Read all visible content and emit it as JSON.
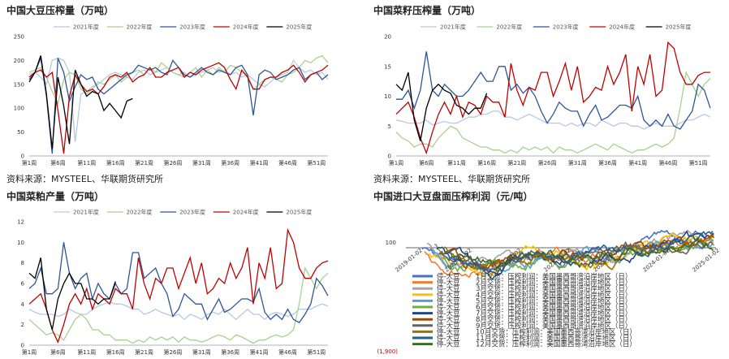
{
  "sources": [
    "资料来源：MYSTEEL、华联期货研究所",
    "资料来源：MYSTEEL、华联期货研究所"
  ],
  "chart_data": [
    {
      "type": "line",
      "title": "中国大豆压榨量（万吨）",
      "ylim": [
        0,
        250
      ],
      "yticks": [
        0,
        50,
        100,
        150,
        200,
        250
      ],
      "xticks": [
        "第1周",
        "第6周",
        "第11周",
        "第16周",
        "第21周",
        "第26周",
        "第31周",
        "第36周",
        "第41周",
        "第46周",
        "第51周"
      ],
      "x_first": 1,
      "x_last": 53,
      "legend_placement": "top",
      "series": [
        {
          "name": "2021年度",
          "color": "#b7c9e2",
          "x_start": 1,
          "values": [
            170,
            175,
            165,
            150,
            200,
            205,
            200,
            175,
            30,
            130,
            135,
            145,
            150,
            160,
            170,
            175,
            170,
            165,
            160,
            175,
            180,
            170,
            175,
            180,
            185,
            175,
            170,
            175,
            165,
            170,
            175,
            180,
            185,
            175,
            180,
            170,
            175,
            165,
            170,
            160,
            150,
            145,
            155,
            165,
            170,
            175,
            200,
            185,
            175,
            180,
            170,
            175,
            160
          ]
        },
        {
          "name": "2022年度",
          "color": "#a9d18e",
          "x_start": 1,
          "values": [
            175,
            180,
            185,
            165,
            135,
            110,
            160,
            175,
            170,
            140,
            130,
            140,
            155,
            150,
            160,
            170,
            155,
            165,
            175,
            180,
            170,
            185,
            175,
            195,
            185,
            175,
            170,
            165,
            175,
            185,
            165,
            180,
            170,
            185,
            175,
            190,
            185,
            175,
            170,
            140,
            150,
            160,
            165,
            160,
            155,
            170,
            175,
            185,
            200,
            195,
            205,
            210,
            195
          ]
        },
        {
          "name": "2023年度",
          "color": "#2f5597",
          "x_start": 1,
          "values": [
            160,
            175,
            205,
            125,
            5,
            205,
            175,
            115,
            145,
            170,
            160,
            165,
            140,
            130,
            140,
            150,
            160,
            170,
            175,
            190,
            185,
            180,
            185,
            175,
            170,
            200,
            185,
            170,
            165,
            175,
            185,
            175,
            170,
            180,
            175,
            170,
            185,
            190,
            170,
            85,
            170,
            180,
            175,
            160,
            165,
            170,
            180,
            185,
            160,
            170,
            175,
            160,
            170
          ]
        },
        {
          "name": "2024年度",
          "color": "#c00000",
          "x_start": 1,
          "values": [
            165,
            175,
            180,
            165,
            175,
            95,
            5,
            125,
            170,
            150,
            135,
            140,
            130,
            145,
            165,
            170,
            165,
            175,
            155,
            165,
            170,
            185,
            165,
            165,
            175,
            180,
            185,
            165,
            175,
            170,
            180,
            185,
            190,
            195,
            185,
            160,
            140,
            180,
            165,
            140,
            140,
            160,
            165,
            165,
            175,
            180,
            190,
            175,
            155,
            170,
            175,
            180,
            190
          ]
        },
        {
          "name": "2025年度",
          "color": "#000000",
          "x_start": 1,
          "values": [
            155,
            175,
            210,
            130,
            15,
            165,
            105,
            25,
            180,
            150,
            125,
            135,
            130,
            95,
            110,
            95,
            80,
            115,
            120
          ]
        }
      ]
    },
    {
      "type": "line",
      "title": "中国菜籽压榨量（万吨）",
      "ylim": [
        0,
        20
      ],
      "yticks": [
        0,
        5,
        10,
        15,
        20
      ],
      "xticks": [
        "第1周",
        "第6周",
        "第11周",
        "第16周",
        "第21周",
        "第26周",
        "第31周",
        "第36周",
        "第41周",
        "第46周",
        "第51周"
      ],
      "x_first": 1,
      "x_last": 53,
      "legend_placement": "top",
      "series": [
        {
          "name": "2021年度",
          "color": "#b7c9e2",
          "x_start": 1,
          "values": [
            6,
            5.8,
            5.5,
            5.5,
            5.5,
            6,
            5.2,
            5.5,
            5.8,
            5.5,
            5.5,
            6,
            6.5,
            6.5,
            7,
            7,
            7.5,
            7.5,
            6.5,
            6.5,
            6,
            6.5,
            7,
            6.5,
            6,
            5.5,
            5.5,
            5.5,
            5,
            5.5,
            5,
            5.5,
            5.5,
            5,
            6,
            5.5,
            5,
            5.5,
            5.5,
            5,
            5,
            4.5,
            5,
            5.5,
            5,
            5,
            5,
            5.5,
            6,
            6,
            6.5,
            7,
            6.5
          ]
        },
        {
          "name": "2022年度",
          "color": "#a9d18e",
          "x_start": 1,
          "values": [
            4,
            3,
            2.5,
            1.5,
            2,
            2,
            1.5,
            3,
            4,
            5,
            4.5,
            3,
            2.5,
            2,
            1.5,
            1.5,
            1,
            1,
            0.5,
            1,
            0.5,
            1.5,
            1,
            1.5,
            1,
            1.5,
            0.5,
            1.5,
            1,
            1,
            0.5,
            1,
            1.5,
            2,
            1.5,
            1,
            2,
            1.5,
            1,
            0.5,
            1,
            1,
            1.5,
            2,
            1.5,
            2,
            3,
            8,
            14,
            12,
            10,
            12,
            13
          ]
        },
        {
          "name": "2023年度",
          "color": "#2f5597",
          "x_start": 1,
          "values": [
            9.5,
            9.5,
            11,
            8,
            11,
            17.5,
            11,
            10,
            12,
            11,
            10,
            10,
            11,
            12.5,
            14,
            12.5,
            12.5,
            15,
            15,
            11,
            12,
            10.5,
            11.5,
            10,
            7.5,
            5.5,
            7,
            9,
            8,
            7.5,
            7.5,
            5,
            7,
            8.5,
            6,
            6.5,
            7.5,
            8.5,
            8.5,
            8,
            10,
            6,
            5,
            6,
            5,
            7,
            5,
            4.5,
            6,
            7.5,
            12,
            11,
            8
          ]
        },
        {
          "name": "2024年度",
          "color": "#c00000",
          "x_start": 1,
          "values": [
            7,
            8,
            9,
            6.5,
            3,
            0.5,
            4,
            7,
            9,
            7,
            10,
            6.5,
            9,
            8.5,
            7,
            10,
            9,
            9,
            6.5,
            15.5,
            11,
            8.5,
            11.5,
            11,
            14,
            14,
            10,
            12.5,
            15.5,
            11,
            15,
            9,
            10,
            11.5,
            11,
            15,
            12,
            14,
            17,
            7.5,
            15,
            12,
            17,
            10,
            11,
            19,
            18,
            14,
            12,
            12,
            13.5,
            14,
            14
          ]
        },
        {
          "name": "2025年度",
          "color": "#000000",
          "x_start": 1,
          "values": [
            12,
            11,
            14,
            6,
            2.5,
            8,
            11,
            12,
            11,
            10.5,
            8.5,
            8,
            7,
            8,
            8,
            10.5
          ]
        }
      ]
    },
    {
      "type": "line",
      "title": "中国菜粕产量（万吨）",
      "ylim": [
        0,
        12
      ],
      "yticks": [
        0,
        2,
        4,
        6,
        8,
        10,
        12
      ],
      "xticks": [
        "第1周",
        "第6周",
        "第11周",
        "第16周",
        "第21周",
        "第26周",
        "第31周",
        "第36周",
        "第41周",
        "第46周",
        "第51周"
      ],
      "x_first": 1,
      "x_last": 53,
      "legend_placement": "top",
      "series": [
        {
          "name": "2021年度",
          "color": "#b7c9e2",
          "x_start": 1,
          "values": [
            3.5,
            3.2,
            3,
            3,
            3,
            2.8,
            3,
            3.5,
            3.2,
            3,
            3,
            3.5,
            3.8,
            4,
            4.2,
            4,
            4,
            3.8,
            3.5,
            3.5,
            3,
            3.2,
            3.5,
            3.2,
            3,
            2.8,
            3,
            2.5,
            3,
            2.8,
            2.5,
            3,
            3.2,
            3,
            3.5,
            3,
            2.5,
            3,
            3.5,
            3,
            3,
            2.5,
            3,
            3.2,
            3,
            2.8,
            3,
            3.5,
            3.5,
            3.5,
            3.8,
            4,
            3.8
          ]
        },
        {
          "name": "2022年度",
          "color": "#a9d18e",
          "x_start": 1,
          "values": [
            2.5,
            2,
            1.5,
            1,
            1.2,
            1,
            0.5,
            1.5,
            2.5,
            3,
            2.5,
            1.5,
            1.5,
            1,
            1,
            0.5,
            0.5,
            0.5,
            0.2,
            0.5,
            0.3,
            0.8,
            0.5,
            0.8,
            0.5,
            0.8,
            0.3,
            0.8,
            0.5,
            0.5,
            0.3,
            0.5,
            0.8,
            1,
            0.8,
            0.5,
            1,
            0.8,
            0.5,
            0.2,
            0.5,
            0.5,
            0.8,
            1,
            0.8,
            1,
            1.5,
            4,
            7.5,
            6.5,
            5.5,
            6.5,
            7
          ]
        },
        {
          "name": "2023年度",
          "color": "#2f5597",
          "x_start": 1,
          "values": [
            5.5,
            6,
            7.5,
            5,
            5,
            5.5,
            10,
            7,
            5.5,
            6.5,
            7,
            4.5,
            6,
            5,
            4.5,
            6,
            5,
            5.5,
            9,
            9,
            6.5,
            7,
            7.5,
            6,
            5,
            2.8,
            3.5,
            5,
            4.5,
            4,
            4,
            2.5,
            3.5,
            4.5,
            3.2,
            3.5,
            4,
            4.5,
            4.5,
            4.2,
            5.5,
            3.2,
            2.5,
            3,
            2.5,
            3.5,
            2.5,
            2.2,
            3,
            4,
            6.5,
            5.8,
            4.8
          ]
        },
        {
          "name": "2024年度",
          "color": "#c00000",
          "x_start": 1,
          "values": [
            4,
            4.5,
            5,
            3.5,
            1.5,
            0.3,
            2,
            4,
            5,
            4,
            5.5,
            3.5,
            5,
            4.5,
            4,
            5.5,
            5,
            5,
            3.5,
            8.5,
            6,
            4.5,
            6.5,
            6,
            7.5,
            7.5,
            5.5,
            7,
            8.5,
            6,
            8,
            5,
            5.5,
            6.5,
            6,
            8,
            6.5,
            7.5,
            9.5,
            4,
            8,
            6.5,
            9.5,
            5.5,
            6,
            11.2,
            10,
            7.5,
            6.5,
            6.5,
            7.5,
            8,
            8.2
          ]
        },
        {
          "name": "2025年度",
          "color": "#000000",
          "x_start": 1,
          "values": [
            7,
            6.5,
            8.5,
            3.5,
            1.5,
            4.5,
            6,
            7,
            6,
            6,
            4.5,
            4.5,
            4,
            4.5,
            4.5,
            6.2
          ]
        }
      ]
    },
    {
      "type": "line",
      "title": "中国进口大豆盘面压榨利润（元/吨）",
      "ytick_labels": [
        "100",
        "(1,900)"
      ],
      "xtick_labels": [
        "2019-01-02",
        "2020-01-02",
        "2021-01-02",
        "2022-01-02",
        "2023-01-02",
        "2024-01-02",
        "2025-01-02"
      ],
      "legend_placement": "inside-left",
      "series": [
        {
          "name": "停-大豆",
          "label": "1月交货：压榨利润：美国墨西哥湾沿岸地区（日）",
          "color": "#4472c4"
        },
        {
          "name": "停-大豆",
          "label": "2月交货：压榨利润：美国墨西哥湾沿岸地区（日）",
          "color": "#ed7d31"
        },
        {
          "name": "停-大豆",
          "label": "3月交货：压榨利润：美国墨西哥湾沿岸地区（日）",
          "color": "#a5a5a5"
        },
        {
          "name": "停-大豆",
          "label": "4月交货：压榨利润：美国墨西哥湾沿岸地区（日）",
          "color": "#ffc000"
        },
        {
          "name": "停-大豆",
          "label": "5月交货：压榨利润：美国墨西哥湾沿岸地区（日）",
          "color": "#5b9bd5"
        },
        {
          "name": "停-大豆",
          "label": "6月交货：压榨利润：美国墨西哥湾沿岸地区（日）",
          "color": "#70ad47"
        },
        {
          "name": "停-大豆",
          "label": "7月交货：压榨利润：美国墨西哥湾沿岸地区（日）",
          "color": "#264478"
        },
        {
          "name": "停-大豆",
          "label": "8月交货：压榨利润：美国墨西哥湾沿岸地区（日）",
          "color": "#9e480e"
        },
        {
          "name": "停-大豆",
          "label": "9月交货：压榨利润：美国墨西哥湾沿岸地区（日）",
          "color": "#636363"
        },
        {
          "name": "停-大豆",
          "label": "10月交货：压榨利润：美国墨西哥湾沿岸地区（日）",
          "color": "#997300"
        },
        {
          "name": "停-大豆",
          "label": "11月交货：压榨利润：美国墨西哥湾沿岸地区（日）",
          "color": "#255e91"
        },
        {
          "name": "停-大豆",
          "label": "12月交货：压榨利润：美国墨西哥湾沿岸地区（日）",
          "color": "#43682b"
        }
      ]
    }
  ]
}
